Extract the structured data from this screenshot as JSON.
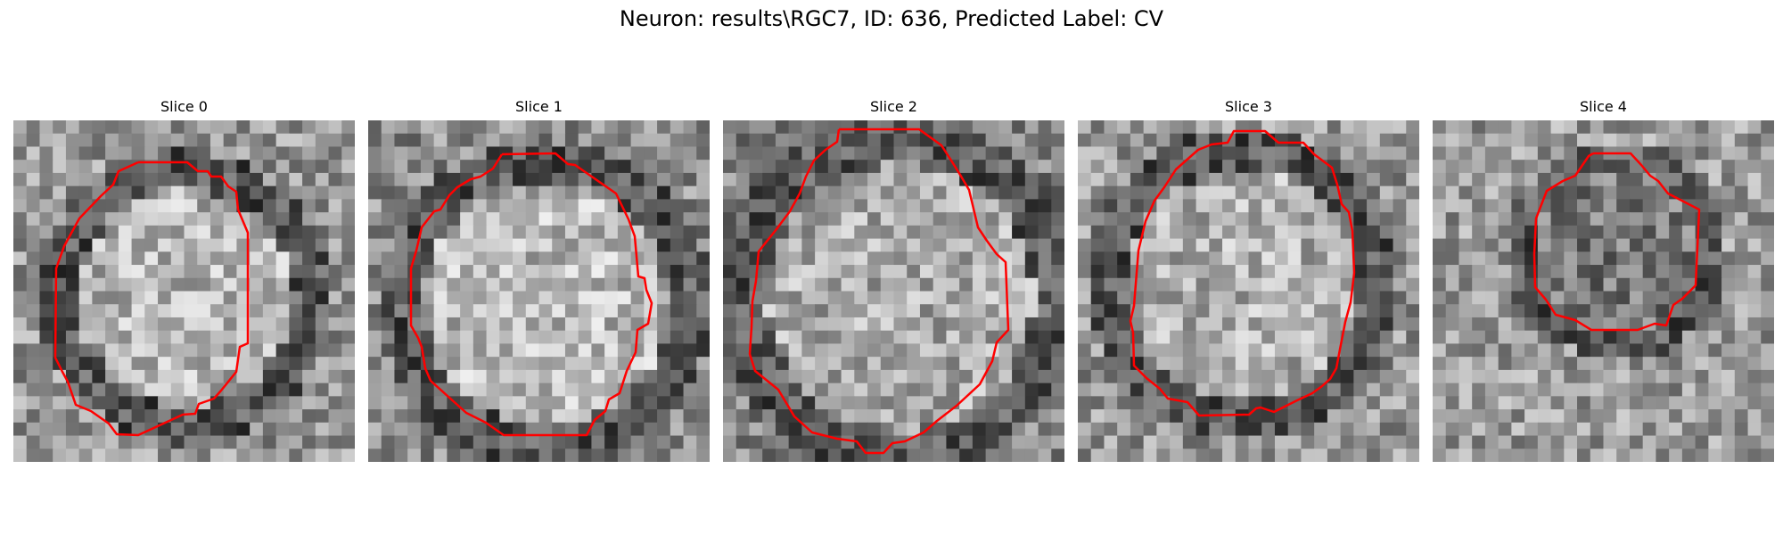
{
  "figure": {
    "title": "Neuron: results\\RGC7, ID: 636, Predicted Label: CV"
  },
  "panels": [
    {
      "title": "Slice 0"
    },
    {
      "title": "Slice 1"
    },
    {
      "title": "Slice 2"
    },
    {
      "title": "Slice 3"
    },
    {
      "title": "Slice 4"
    }
  ],
  "colors": {
    "contour": "#ff0000",
    "background": "#ffffff",
    "colormap": "gray"
  }
}
